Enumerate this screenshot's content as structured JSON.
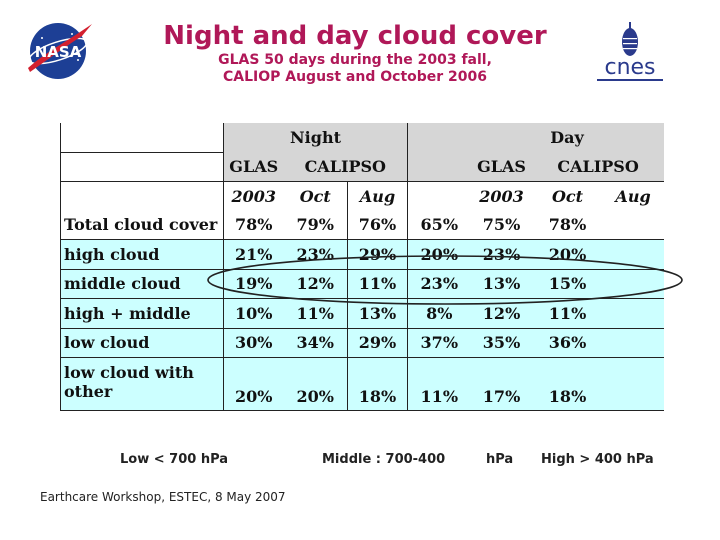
{
  "header": {
    "title": "Night and day cloud cover",
    "subtitle_lines": [
      "GLAS 50 days during the 2003 fall,",
      "CALIOP August and October 2006"
    ]
  },
  "logos": {
    "nasa": {
      "icon": "nasa-meatball-icon",
      "text": "NASA",
      "colors": {
        "blue": "#1d3f95",
        "red": "#d3202f"
      }
    },
    "cnes": {
      "icon": "cnes-logo-icon",
      "text": "cnes",
      "colors": {
        "blue": "#2a3a8c"
      }
    }
  },
  "table": {
    "group_headers": [
      "Night",
      "Day"
    ],
    "instrument_headers": [
      "GLAS",
      "CALIPSO",
      "GLAS",
      "CALIPSO"
    ],
    "period_headers": [
      "2003",
      "Oct",
      "Aug",
      "2003",
      "Oct",
      "Aug"
    ],
    "rows": [
      {
        "label": "Total cloud cover",
        "values": [
          "78%",
          "79%",
          "76%",
          "65%",
          "75%",
          "78%"
        ]
      },
      {
        "label": "high cloud",
        "values": [
          "21%",
          "23%",
          "29%",
          "20%",
          "23%",
          "20%"
        ]
      },
      {
        "label": "middle cloud",
        "values": [
          "19%",
          "12%",
          "11%",
          "23%",
          "13%",
          "15%"
        ]
      },
      {
        "label": "high + middle",
        "values": [
          "10%",
          "11%",
          "13%",
          "8%",
          "12%",
          "11%"
        ]
      },
      {
        "label": "low cloud",
        "values": [
          "30%",
          "34%",
          "29%",
          "37%",
          "35%",
          "36%"
        ]
      },
      {
        "label_lines": [
          "low cloud with",
          "other"
        ],
        "values": [
          "20%",
          "20%",
          "18%",
          "11%",
          "17%",
          "18%"
        ]
      }
    ],
    "colors": {
      "header_gray": "#d6d6d6",
      "row_cyan": "#ccffff"
    }
  },
  "legend": {
    "low": "Low < 700 hPa",
    "middle": "Middle : 700-400",
    "unit": "hPa",
    "high": "High > 400 hPa"
  },
  "footer": "Earthcare Workshop, ESTEC, 8 May 2007"
}
